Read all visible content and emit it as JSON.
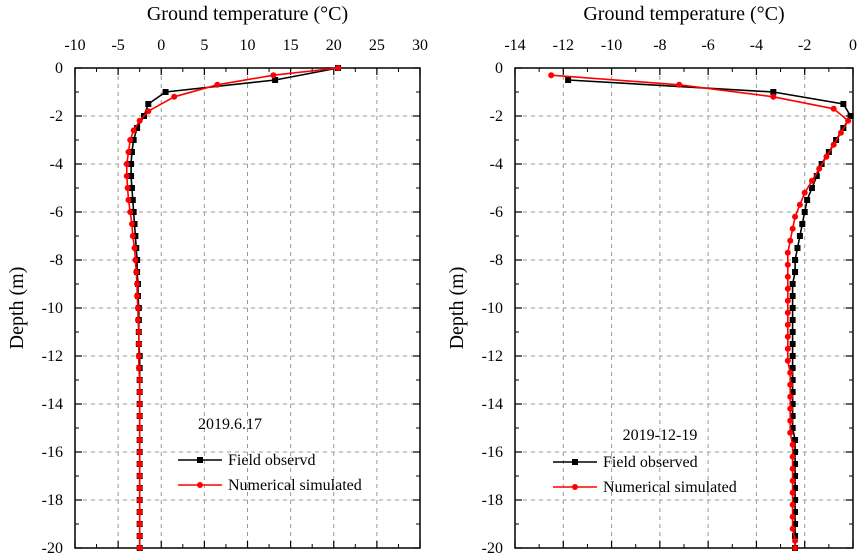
{
  "chart_data": [
    {
      "type": "line",
      "annotation": "2019.6.17",
      "xlabel": "Ground temperature (°C)",
      "ylabel": "Depth (m)",
      "xlim": [
        -10,
        30
      ],
      "ylim": [
        -20,
        0
      ],
      "x_ticks": [
        -10,
        -5,
        0,
        5,
        10,
        15,
        20,
        25,
        30
      ],
      "y_ticks": [
        0,
        -2,
        -4,
        -6,
        -8,
        -10,
        -12,
        -14,
        -16,
        -18,
        -20
      ],
      "grid": true,
      "legend_position": "lower-right",
      "series": [
        {
          "name": "Field observd",
          "color": "#000000",
          "marker": "square",
          "points": [
            [
              20.5,
              0
            ],
            [
              13.2,
              -0.5
            ],
            [
              0.5,
              -1.0
            ],
            [
              -1.5,
              -1.5
            ],
            [
              -2.0,
              -2.0
            ],
            [
              -2.8,
              -2.5
            ],
            [
              -3.2,
              -3.0
            ],
            [
              -3.4,
              -3.5
            ],
            [
              -3.5,
              -4.0
            ],
            [
              -3.5,
              -4.5
            ],
            [
              -3.4,
              -5.0
            ],
            [
              -3.3,
              -5.5
            ],
            [
              -3.2,
              -6.0
            ],
            [
              -3.1,
              -6.5
            ],
            [
              -3.0,
              -7.0
            ],
            [
              -2.9,
              -7.5
            ],
            [
              -2.8,
              -8.0
            ],
            [
              -2.8,
              -8.5
            ],
            [
              -2.7,
              -9.0
            ],
            [
              -2.7,
              -9.5
            ],
            [
              -2.6,
              -10.0
            ],
            [
              -2.6,
              -10.5
            ],
            [
              -2.6,
              -11.0
            ],
            [
              -2.6,
              -11.5
            ],
            [
              -2.5,
              -12.0
            ],
            [
              -2.5,
              -12.5
            ],
            [
              -2.5,
              -13.0
            ],
            [
              -2.5,
              -13.5
            ],
            [
              -2.5,
              -14.0
            ],
            [
              -2.5,
              -14.5
            ],
            [
              -2.5,
              -15.0
            ],
            [
              -2.5,
              -15.5
            ],
            [
              -2.5,
              -16.0
            ],
            [
              -2.5,
              -16.5
            ],
            [
              -2.5,
              -17.0
            ],
            [
              -2.5,
              -17.5
            ],
            [
              -2.5,
              -18.0
            ],
            [
              -2.5,
              -18.5
            ],
            [
              -2.5,
              -19.0
            ],
            [
              -2.5,
              -19.5
            ],
            [
              -2.5,
              -20.0
            ]
          ]
        },
        {
          "name": "Numerical simulated",
          "color": "#ff0000",
          "marker": "circle",
          "points": [
            [
              20.5,
              0
            ],
            [
              13.0,
              -0.3
            ],
            [
              6.5,
              -0.7
            ],
            [
              1.5,
              -1.2
            ],
            [
              -1.5,
              -1.8
            ],
            [
              -2.5,
              -2.2
            ],
            [
              -3.2,
              -2.6
            ],
            [
              -3.6,
              -3.0
            ],
            [
              -3.8,
              -3.5
            ],
            [
              -4.0,
              -4.0
            ],
            [
              -4.0,
              -4.5
            ],
            [
              -3.9,
              -5.0
            ],
            [
              -3.8,
              -5.5
            ],
            [
              -3.6,
              -6.0
            ],
            [
              -3.4,
              -6.5
            ],
            [
              -3.3,
              -7.0
            ],
            [
              -3.1,
              -7.5
            ],
            [
              -3.0,
              -8.0
            ],
            [
              -2.9,
              -8.5
            ],
            [
              -2.8,
              -9.0
            ],
            [
              -2.8,
              -9.5
            ],
            [
              -2.7,
              -10.0
            ],
            [
              -2.7,
              -10.5
            ],
            [
              -2.6,
              -11.0
            ],
            [
              -2.6,
              -11.5
            ],
            [
              -2.6,
              -12.0
            ],
            [
              -2.6,
              -12.5
            ],
            [
              -2.5,
              -13.0
            ],
            [
              -2.5,
              -13.5
            ],
            [
              -2.5,
              -14.0
            ],
            [
              -2.5,
              -14.5
            ],
            [
              -2.5,
              -15.0
            ],
            [
              -2.5,
              -15.5
            ],
            [
              -2.5,
              -16.0
            ],
            [
              -2.5,
              -16.5
            ],
            [
              -2.5,
              -17.0
            ],
            [
              -2.5,
              -17.5
            ],
            [
              -2.5,
              -18.0
            ],
            [
              -2.5,
              -18.5
            ],
            [
              -2.5,
              -19.0
            ],
            [
              -2.5,
              -19.5
            ],
            [
              -2.5,
              -20.0
            ]
          ]
        }
      ]
    },
    {
      "type": "line",
      "annotation": "2019-12-19",
      "xlabel": "Ground temperature (°C)",
      "ylabel": "Depth (m)",
      "xlim": [
        -14,
        0
      ],
      "ylim": [
        -20,
        0
      ],
      "x_ticks": [
        -14,
        -12,
        -10,
        -8,
        -6,
        -4,
        -2,
        0
      ],
      "y_ticks": [
        0,
        -2,
        -4,
        -6,
        -8,
        -10,
        -12,
        -14,
        -16,
        -18,
        -20
      ],
      "grid": true,
      "legend_position": "lower-right",
      "series": [
        {
          "name": "Field observed",
          "color": "#000000",
          "marker": "square",
          "points": [
            [
              -11.8,
              -0.5
            ],
            [
              -3.3,
              -1.0
            ],
            [
              -0.4,
              -1.5
            ],
            [
              -0.1,
              -2.0
            ],
            [
              -0.4,
              -2.5
            ],
            [
              -0.7,
              -3.0
            ],
            [
              -1.0,
              -3.5
            ],
            [
              -1.3,
              -4.0
            ],
            [
              -1.5,
              -4.5
            ],
            [
              -1.7,
              -5.0
            ],
            [
              -1.9,
              -5.5
            ],
            [
              -2.0,
              -6.0
            ],
            [
              -2.1,
              -6.5
            ],
            [
              -2.2,
              -7.0
            ],
            [
              -2.3,
              -7.5
            ],
            [
              -2.4,
              -8.0
            ],
            [
              -2.4,
              -8.5
            ],
            [
              -2.5,
              -9.0
            ],
            [
              -2.5,
              -9.5
            ],
            [
              -2.5,
              -10.0
            ],
            [
              -2.5,
              -10.5
            ],
            [
              -2.5,
              -11.0
            ],
            [
              -2.5,
              -11.5
            ],
            [
              -2.5,
              -12.0
            ],
            [
              -2.5,
              -12.5
            ],
            [
              -2.5,
              -13.0
            ],
            [
              -2.5,
              -13.5
            ],
            [
              -2.5,
              -14.0
            ],
            [
              -2.5,
              -14.5
            ],
            [
              -2.5,
              -15.0
            ],
            [
              -2.4,
              -15.5
            ],
            [
              -2.4,
              -16.0
            ],
            [
              -2.4,
              -16.5
            ],
            [
              -2.4,
              -17.0
            ],
            [
              -2.4,
              -17.5
            ],
            [
              -2.4,
              -18.0
            ],
            [
              -2.4,
              -18.5
            ],
            [
              -2.4,
              -19.0
            ],
            [
              -2.4,
              -19.5
            ],
            [
              -2.4,
              -20.0
            ]
          ]
        },
        {
          "name": "Numerical simulated",
          "color": "#ff0000",
          "marker": "circle",
          "points": [
            [
              -12.5,
              -0.3
            ],
            [
              -7.2,
              -0.7
            ],
            [
              -3.3,
              -1.2
            ],
            [
              -0.8,
              -1.7
            ],
            [
              -0.2,
              -2.2
            ],
            [
              -0.5,
              -2.7
            ],
            [
              -0.8,
              -3.2
            ],
            [
              -1.1,
              -3.7
            ],
            [
              -1.4,
              -4.2
            ],
            [
              -1.7,
              -4.7
            ],
            [
              -2.0,
              -5.2
            ],
            [
              -2.2,
              -5.7
            ],
            [
              -2.4,
              -6.2
            ],
            [
              -2.5,
              -6.7
            ],
            [
              -2.6,
              -7.2
            ],
            [
              -2.7,
              -7.7
            ],
            [
              -2.7,
              -8.2
            ],
            [
              -2.7,
              -8.7
            ],
            [
              -2.7,
              -9.2
            ],
            [
              -2.7,
              -9.7
            ],
            [
              -2.7,
              -10.2
            ],
            [
              -2.7,
              -10.7
            ],
            [
              -2.7,
              -11.2
            ],
            [
              -2.7,
              -11.7
            ],
            [
              -2.7,
              -12.2
            ],
            [
              -2.6,
              -12.7
            ],
            [
              -2.6,
              -13.2
            ],
            [
              -2.6,
              -13.7
            ],
            [
              -2.6,
              -14.2
            ],
            [
              -2.6,
              -14.7
            ],
            [
              -2.6,
              -15.2
            ],
            [
              -2.5,
              -15.7
            ],
            [
              -2.5,
              -16.2
            ],
            [
              -2.5,
              -16.7
            ],
            [
              -2.5,
              -17.2
            ],
            [
              -2.5,
              -17.7
            ],
            [
              -2.5,
              -18.2
            ],
            [
              -2.5,
              -18.7
            ],
            [
              -2.5,
              -19.2
            ],
            [
              -2.4,
              -19.7
            ],
            [
              -2.4,
              -20.0
            ]
          ]
        }
      ]
    }
  ]
}
